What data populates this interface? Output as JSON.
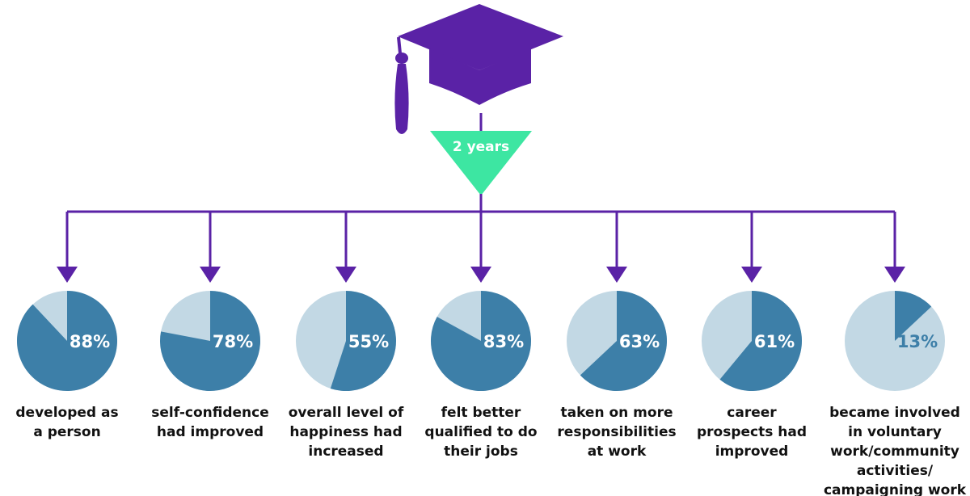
{
  "header": {
    "duration_label": "2 years",
    "icon": "graduation-cap-icon"
  },
  "colors": {
    "cap": "#5a22a6",
    "connector": "#5a22a6",
    "badge": "#3de6a2",
    "slice": "#3d7fa8",
    "remainder": "#c2d8e4",
    "label_text": "#111111",
    "pct_on_slice": "#ffffff",
    "pct_on_remainder": "#3d7fa8"
  },
  "chart_data": {
    "type": "pie",
    "values": [
      88,
      78,
      55,
      83,
      63,
      61,
      13
    ],
    "value_labels": [
      "88%",
      "78%",
      "55%",
      "83%",
      "63%",
      "61%",
      "13%"
    ],
    "categories": [
      [
        "developed as",
        "a person"
      ],
      [
        "self-confidence",
        "had improved"
      ],
      [
        "overall level of",
        "happiness had",
        "increased"
      ],
      [
        "felt better",
        "qualified to do",
        "their jobs"
      ],
      [
        "taken on more",
        "responsibilities",
        "at work"
      ],
      [
        "career",
        "prospects had",
        "improved"
      ],
      [
        "became involved",
        "in voluntary",
        "work/community",
        "activities/",
        "campaigning work"
      ]
    ]
  }
}
